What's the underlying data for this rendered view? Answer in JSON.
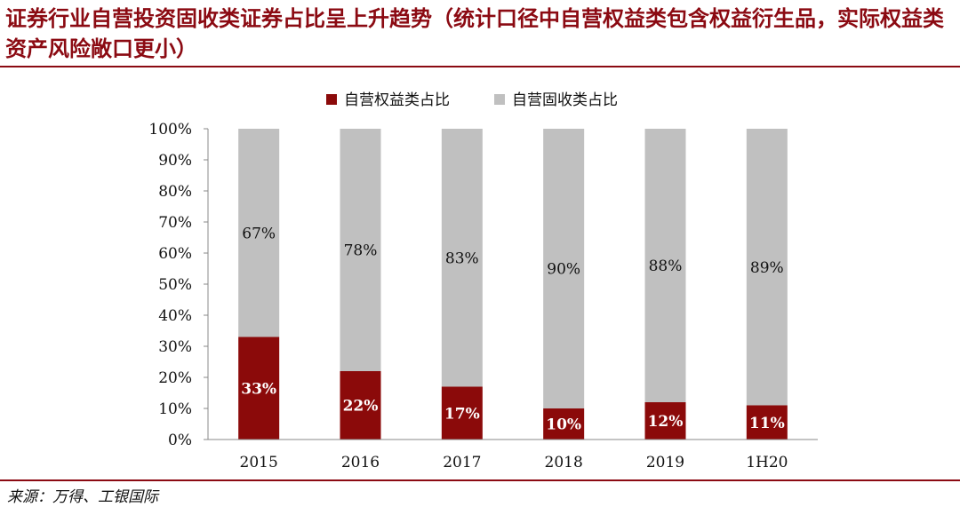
{
  "title": "证券行业自营投资固收类证券占比呈上升趋势（统计口径中自营权益类包含权益衍生品，实际权益类资产风险敞口更小）",
  "source": "来源：万得、工银国际",
  "colors": {
    "equity": "#8b0a0a",
    "fixed_income": "#c0c0c0",
    "accent": "#8b0a12"
  },
  "chart_data": {
    "type": "bar",
    "stacked": true,
    "percent_stacked": true,
    "categories": [
      "2015",
      "2016",
      "2017",
      "2018",
      "2019",
      "1H20"
    ],
    "series": [
      {
        "name": "自营权益类占比",
        "values": [
          33,
          22,
          17,
          10,
          12,
          11
        ],
        "labels": [
          "33%",
          "22%",
          "17%",
          "10%",
          "12%",
          "11%"
        ]
      },
      {
        "name": "自营固收类占比",
        "values": [
          67,
          78,
          83,
          90,
          88,
          89
        ],
        "labels": [
          "67%",
          "78%",
          "83%",
          "90%",
          "88%",
          "89%"
        ]
      }
    ],
    "ylim": [
      0,
      100
    ],
    "yticks": [
      "0%",
      "10%",
      "20%",
      "30%",
      "40%",
      "50%",
      "60%",
      "70%",
      "80%",
      "90%",
      "100%"
    ],
    "legend_position": "top-center",
    "grid": false
  }
}
